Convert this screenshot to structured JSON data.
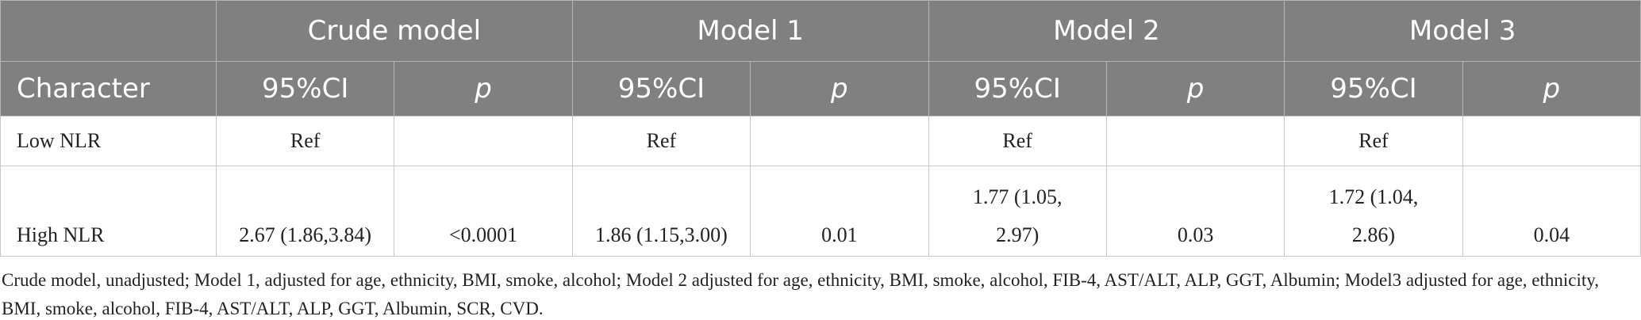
{
  "table": {
    "groups": [
      "Crude model",
      "Model 1",
      "Model 2",
      "Model 3"
    ],
    "character": "Character",
    "subheaders": [
      "95%CI",
      "p",
      "95%CI",
      "p",
      "95%CI",
      "p",
      "95%CI",
      "p"
    ],
    "rows": [
      [
        "Low NLR",
        "Ref",
        null,
        "Ref",
        null,
        "Ref",
        null,
        "Ref",
        null
      ],
      [
        "High NLR",
        "2.67 (1.86,3.84)",
        "<0.0001",
        "1.86 (1.15,3.00)",
        "0.01",
        "1.77 (1.05, 2.97)",
        "0.03",
        "1.72 (1.04, 2.86)",
        "0.04"
      ]
    ]
  },
  "footnote": "Crude model, unadjusted; Model 1, adjusted for age, ethnicity, BMI, smoke, alcohol; Model 2 adjusted for age, ethnicity, BMI, smoke, alcohol, FIB-4, AST/ALT, ALP, GGT, Albumin; Model3 adjusted for age, ethnicity, BMI, smoke, alcohol, FIB-4, AST/ALT, ALP, GGT, Albumin, SCR, CVD."
}
